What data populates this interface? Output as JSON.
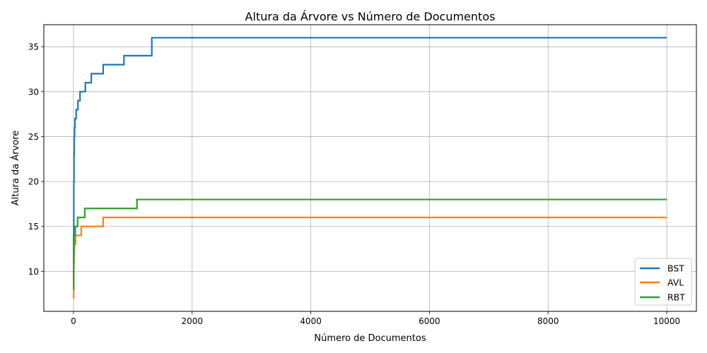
{
  "chart_data": {
    "type": "line",
    "title": "Altura da Árvore vs Número de Documentos",
    "xlabel": "Número de Documentos",
    "ylabel": "Altura da Árvore",
    "xlim": [
      -500,
      10500
    ],
    "ylim": [
      5.55,
      37.45
    ],
    "xticks": [
      0,
      2000,
      4000,
      6000,
      8000,
      10000
    ],
    "yticks": [
      10,
      15,
      20,
      25,
      30,
      35
    ],
    "grid": true,
    "legend_position": "lower-right",
    "series": [
      {
        "name": "BST",
        "color": "#1f77b4",
        "step": true,
        "points": [
          [
            1,
            8
          ],
          [
            2,
            14
          ],
          [
            5,
            20
          ],
          [
            8,
            23
          ],
          [
            12,
            25
          ],
          [
            18,
            26
          ],
          [
            25,
            27
          ],
          [
            45,
            28
          ],
          [
            75,
            29
          ],
          [
            110,
            30
          ],
          [
            200,
            31
          ],
          [
            300,
            32
          ],
          [
            500,
            33
          ],
          [
            850,
            34
          ],
          [
            1320,
            36
          ],
          [
            10000,
            36
          ]
        ]
      },
      {
        "name": "AVL",
        "color": "#ff7f0e",
        "step": true,
        "points": [
          [
            1,
            7
          ],
          [
            3,
            8
          ],
          [
            5,
            11
          ],
          [
            10,
            13
          ],
          [
            35,
            14
          ],
          [
            130,
            15
          ],
          [
            500,
            16
          ],
          [
            10000,
            16
          ]
        ]
      },
      {
        "name": "RBT",
        "color": "#2ca02c",
        "step": true,
        "points": [
          [
            1,
            8
          ],
          [
            3,
            10
          ],
          [
            5,
            12
          ],
          [
            10,
            14
          ],
          [
            30,
            15
          ],
          [
            70,
            16
          ],
          [
            190,
            17
          ],
          [
            1070,
            18
          ],
          [
            10000,
            18
          ]
        ]
      }
    ]
  }
}
